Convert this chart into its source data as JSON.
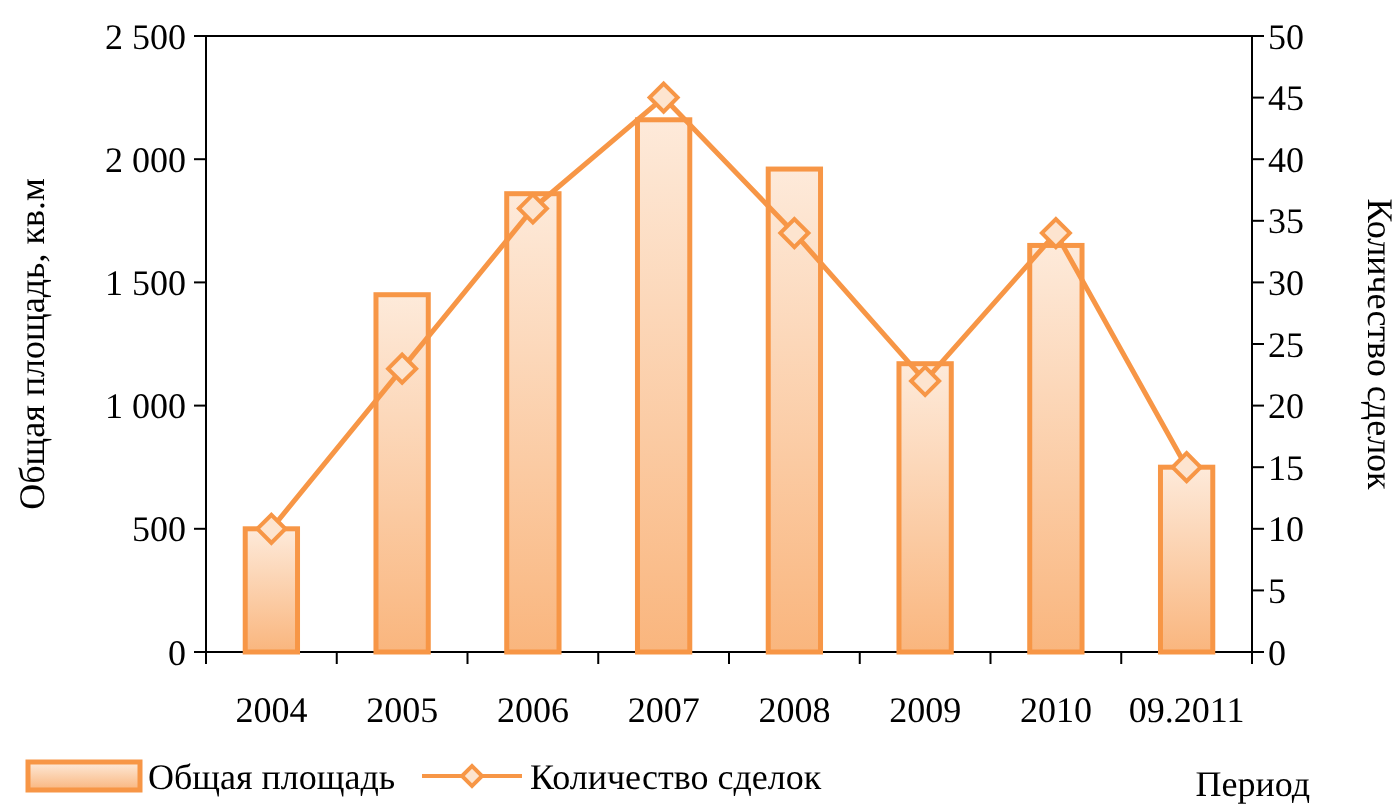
{
  "chart_data": {
    "type": "bar",
    "xlabel": "Период",
    "ylabel": "Общая площадь, кв.м",
    "y2label": "Количество сделок",
    "categories": [
      "2004",
      "2005",
      "2006",
      "2007",
      "2008",
      "2009",
      "2010",
      "09.2011"
    ],
    "series": [
      {
        "name": "Общая площадь",
        "color": "#f79646",
        "values": [
          500,
          1450,
          1860,
          2160,
          1960,
          1170,
          1650,
          750
        ]
      },
      {
        "name": "Количество сделок",
        "type": "line",
        "axis": "y2",
        "color": "#f79646",
        "marker": "diamond",
        "values": [
          10,
          23,
          36,
          45,
          34,
          22,
          34,
          15
        ]
      }
    ],
    "ylim": [
      0,
      2500
    ],
    "yticks": [
      {
        "value": 0,
        "label": "0"
      },
      {
        "value": 500,
        "label": "500"
      },
      {
        "value": 1000,
        "label": "1 000"
      },
      {
        "value": 1500,
        "label": "1 500"
      },
      {
        "value": 2000,
        "label": "2 000"
      },
      {
        "value": 2500,
        "label": "2 500"
      }
    ],
    "y2lim": [
      0,
      50
    ],
    "y2ticks": [
      0,
      5,
      10,
      15,
      20,
      25,
      30,
      35,
      40,
      45,
      50
    ],
    "legend": "bottom left"
  }
}
